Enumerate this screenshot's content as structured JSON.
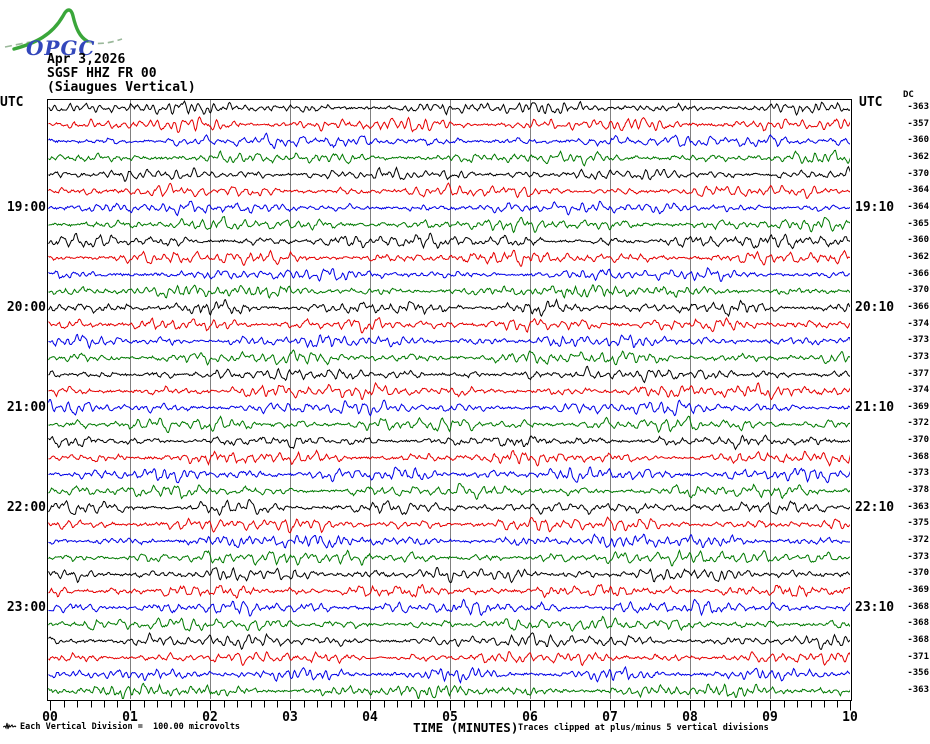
{
  "logo": {
    "text": "OPGC"
  },
  "header": {
    "date": "Apr 3,2026",
    "station": "SGSF HHZ FR 00",
    "location": "(Siaugues Vertical)"
  },
  "labels": {
    "utc_left": "UTC",
    "utc_right": "UTC",
    "dc_header": "DC"
  },
  "xaxis": {
    "title": "TIME (MINUTES)",
    "tick_labels": [
      "00",
      "01",
      "02",
      "03",
      "04",
      "05",
      "06",
      "07",
      "08",
      "09",
      "10"
    ]
  },
  "footer": {
    "scale_note": "Each Vertical Division =  100.00 microvolts",
    "clip_note": "Traces clipped at plus/minus 5 vertical divisions"
  },
  "colors": {
    "black": "#000000",
    "red": "#e60000",
    "blue": "#0000e6",
    "green": "#007a00",
    "grid": "#808080",
    "border": "#000000",
    "logo_curve": "#3aa63a",
    "logo_dash": "#9ab89a",
    "logo_text": "#3347bb"
  },
  "chart_data": {
    "type": "line",
    "subtype": "helicorder-seismogram",
    "title": "SGSF HHZ FR 00 (Siaugues Vertical)",
    "xlabel": "TIME (MINUTES)",
    "x_range_minutes": [
      0,
      10
    ],
    "minor_ticks_per_interval": 5,
    "row_duration_minutes": 10,
    "trace_character": "continuous background noise, ~1-2 vertical divisions peak, clipped at plus/minus 5 divisions",
    "rows": [
      {
        "color": "black",
        "dc": -363,
        "label_left": "",
        "label_right": ""
      },
      {
        "color": "red",
        "dc": -357,
        "label_left": "",
        "label_right": ""
      },
      {
        "color": "blue",
        "dc": -360,
        "label_left": "",
        "label_right": ""
      },
      {
        "color": "green",
        "dc": -362,
        "label_left": "",
        "label_right": ""
      },
      {
        "color": "black",
        "dc": -370,
        "label_left": "",
        "label_right": ""
      },
      {
        "color": "red",
        "dc": -364,
        "label_left": "",
        "label_right": ""
      },
      {
        "color": "blue",
        "dc": -364,
        "label_left": "19:00",
        "label_right": "19:10"
      },
      {
        "color": "green",
        "dc": -365,
        "label_left": "",
        "label_right": ""
      },
      {
        "color": "black",
        "dc": -360,
        "label_left": "",
        "label_right": ""
      },
      {
        "color": "red",
        "dc": -362,
        "label_left": "",
        "label_right": ""
      },
      {
        "color": "blue",
        "dc": -366,
        "label_left": "",
        "label_right": ""
      },
      {
        "color": "green",
        "dc": -370,
        "label_left": "",
        "label_right": ""
      },
      {
        "color": "black",
        "dc": -366,
        "label_left": "20:00",
        "label_right": "20:10"
      },
      {
        "color": "red",
        "dc": -374,
        "label_left": "",
        "label_right": ""
      },
      {
        "color": "blue",
        "dc": -373,
        "label_left": "",
        "label_right": ""
      },
      {
        "color": "green",
        "dc": -373,
        "label_left": "",
        "label_right": ""
      },
      {
        "color": "black",
        "dc": -377,
        "label_left": "",
        "label_right": ""
      },
      {
        "color": "red",
        "dc": -374,
        "label_left": "",
        "label_right": ""
      },
      {
        "color": "blue",
        "dc": -369,
        "label_left": "21:00",
        "label_right": "21:10"
      },
      {
        "color": "green",
        "dc": -372,
        "label_left": "",
        "label_right": ""
      },
      {
        "color": "black",
        "dc": -370,
        "label_left": "",
        "label_right": ""
      },
      {
        "color": "red",
        "dc": -368,
        "label_left": "",
        "label_right": ""
      },
      {
        "color": "blue",
        "dc": -373,
        "label_left": "",
        "label_right": ""
      },
      {
        "color": "green",
        "dc": -378,
        "label_left": "",
        "label_right": ""
      },
      {
        "color": "black",
        "dc": -363,
        "label_left": "22:00",
        "label_right": "22:10"
      },
      {
        "color": "red",
        "dc": -375,
        "label_left": "",
        "label_right": ""
      },
      {
        "color": "blue",
        "dc": -372,
        "label_left": "",
        "label_right": ""
      },
      {
        "color": "green",
        "dc": -373,
        "label_left": "",
        "label_right": ""
      },
      {
        "color": "black",
        "dc": -370,
        "label_left": "",
        "label_right": ""
      },
      {
        "color": "red",
        "dc": -369,
        "label_left": "",
        "label_right": ""
      },
      {
        "color": "blue",
        "dc": -368,
        "label_left": "23:00",
        "label_right": "23:10"
      },
      {
        "color": "green",
        "dc": -368,
        "label_left": "",
        "label_right": ""
      },
      {
        "color": "black",
        "dc": -368,
        "label_left": "",
        "label_right": ""
      },
      {
        "color": "red",
        "dc": -371,
        "label_left": "",
        "label_right": ""
      },
      {
        "color": "blue",
        "dc": -356,
        "label_left": "",
        "label_right": ""
      },
      {
        "color": "green",
        "dc": -363,
        "label_left": "",
        "label_right": ""
      }
    ]
  }
}
